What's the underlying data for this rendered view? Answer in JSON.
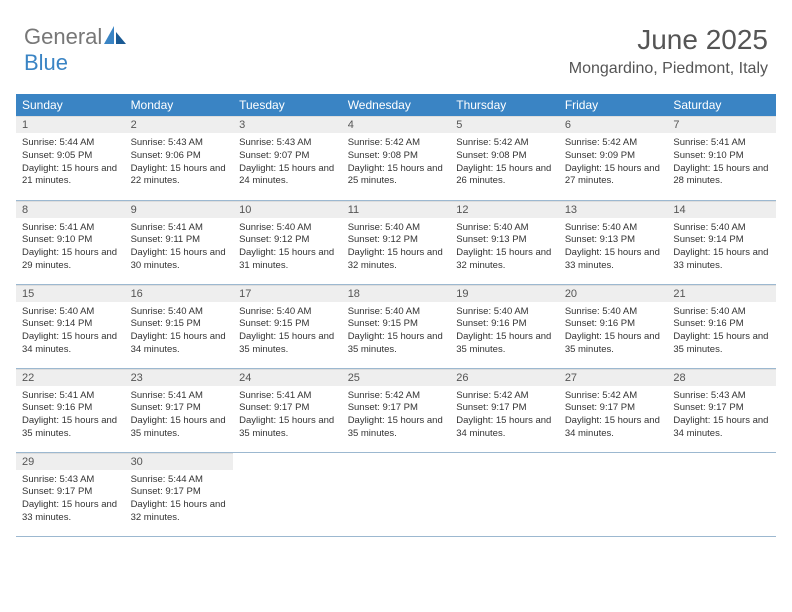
{
  "brand": {
    "part1": "General",
    "part2": "Blue"
  },
  "title": "June 2025",
  "location": "Mongardino, Piedmont, Italy",
  "colors": {
    "header_bg": "#3a84c4",
    "header_text": "#ffffff",
    "daynum_bg": "#eeeeee",
    "border": "#9cb8d0",
    "brand_gray": "#777777",
    "brand_blue": "#3a84c4",
    "page_bg": "#ffffff",
    "body_text": "#333333"
  },
  "weekdays": [
    "Sunday",
    "Monday",
    "Tuesday",
    "Wednesday",
    "Thursday",
    "Friday",
    "Saturday"
  ],
  "weeks": [
    [
      {
        "num": "1",
        "sunrise": "5:44 AM",
        "sunset": "9:05 PM",
        "daylight": "15 hours and 21 minutes."
      },
      {
        "num": "2",
        "sunrise": "5:43 AM",
        "sunset": "9:06 PM",
        "daylight": "15 hours and 22 minutes."
      },
      {
        "num": "3",
        "sunrise": "5:43 AM",
        "sunset": "9:07 PM",
        "daylight": "15 hours and 24 minutes."
      },
      {
        "num": "4",
        "sunrise": "5:42 AM",
        "sunset": "9:08 PM",
        "daylight": "15 hours and 25 minutes."
      },
      {
        "num": "5",
        "sunrise": "5:42 AM",
        "sunset": "9:08 PM",
        "daylight": "15 hours and 26 minutes."
      },
      {
        "num": "6",
        "sunrise": "5:42 AM",
        "sunset": "9:09 PM",
        "daylight": "15 hours and 27 minutes."
      },
      {
        "num": "7",
        "sunrise": "5:41 AM",
        "sunset": "9:10 PM",
        "daylight": "15 hours and 28 minutes."
      }
    ],
    [
      {
        "num": "8",
        "sunrise": "5:41 AM",
        "sunset": "9:10 PM",
        "daylight": "15 hours and 29 minutes."
      },
      {
        "num": "9",
        "sunrise": "5:41 AM",
        "sunset": "9:11 PM",
        "daylight": "15 hours and 30 minutes."
      },
      {
        "num": "10",
        "sunrise": "5:40 AM",
        "sunset": "9:12 PM",
        "daylight": "15 hours and 31 minutes."
      },
      {
        "num": "11",
        "sunrise": "5:40 AM",
        "sunset": "9:12 PM",
        "daylight": "15 hours and 32 minutes."
      },
      {
        "num": "12",
        "sunrise": "5:40 AM",
        "sunset": "9:13 PM",
        "daylight": "15 hours and 32 minutes."
      },
      {
        "num": "13",
        "sunrise": "5:40 AM",
        "sunset": "9:13 PM",
        "daylight": "15 hours and 33 minutes."
      },
      {
        "num": "14",
        "sunrise": "5:40 AM",
        "sunset": "9:14 PM",
        "daylight": "15 hours and 33 minutes."
      }
    ],
    [
      {
        "num": "15",
        "sunrise": "5:40 AM",
        "sunset": "9:14 PM",
        "daylight": "15 hours and 34 minutes."
      },
      {
        "num": "16",
        "sunrise": "5:40 AM",
        "sunset": "9:15 PM",
        "daylight": "15 hours and 34 minutes."
      },
      {
        "num": "17",
        "sunrise": "5:40 AM",
        "sunset": "9:15 PM",
        "daylight": "15 hours and 35 minutes."
      },
      {
        "num": "18",
        "sunrise": "5:40 AM",
        "sunset": "9:15 PM",
        "daylight": "15 hours and 35 minutes."
      },
      {
        "num": "19",
        "sunrise": "5:40 AM",
        "sunset": "9:16 PM",
        "daylight": "15 hours and 35 minutes."
      },
      {
        "num": "20",
        "sunrise": "5:40 AM",
        "sunset": "9:16 PM",
        "daylight": "15 hours and 35 minutes."
      },
      {
        "num": "21",
        "sunrise": "5:40 AM",
        "sunset": "9:16 PM",
        "daylight": "15 hours and 35 minutes."
      }
    ],
    [
      {
        "num": "22",
        "sunrise": "5:41 AM",
        "sunset": "9:16 PM",
        "daylight": "15 hours and 35 minutes."
      },
      {
        "num": "23",
        "sunrise": "5:41 AM",
        "sunset": "9:17 PM",
        "daylight": "15 hours and 35 minutes."
      },
      {
        "num": "24",
        "sunrise": "5:41 AM",
        "sunset": "9:17 PM",
        "daylight": "15 hours and 35 minutes."
      },
      {
        "num": "25",
        "sunrise": "5:42 AM",
        "sunset": "9:17 PM",
        "daylight": "15 hours and 35 minutes."
      },
      {
        "num": "26",
        "sunrise": "5:42 AM",
        "sunset": "9:17 PM",
        "daylight": "15 hours and 34 minutes."
      },
      {
        "num": "27",
        "sunrise": "5:42 AM",
        "sunset": "9:17 PM",
        "daylight": "15 hours and 34 minutes."
      },
      {
        "num": "28",
        "sunrise": "5:43 AM",
        "sunset": "9:17 PM",
        "daylight": "15 hours and 34 minutes."
      }
    ],
    [
      {
        "num": "29",
        "sunrise": "5:43 AM",
        "sunset": "9:17 PM",
        "daylight": "15 hours and 33 minutes."
      },
      {
        "num": "30",
        "sunrise": "5:44 AM",
        "sunset": "9:17 PM",
        "daylight": "15 hours and 32 minutes."
      },
      null,
      null,
      null,
      null,
      null
    ]
  ],
  "labels": {
    "sunrise": "Sunrise:",
    "sunset": "Sunset:",
    "daylight": "Daylight:"
  }
}
